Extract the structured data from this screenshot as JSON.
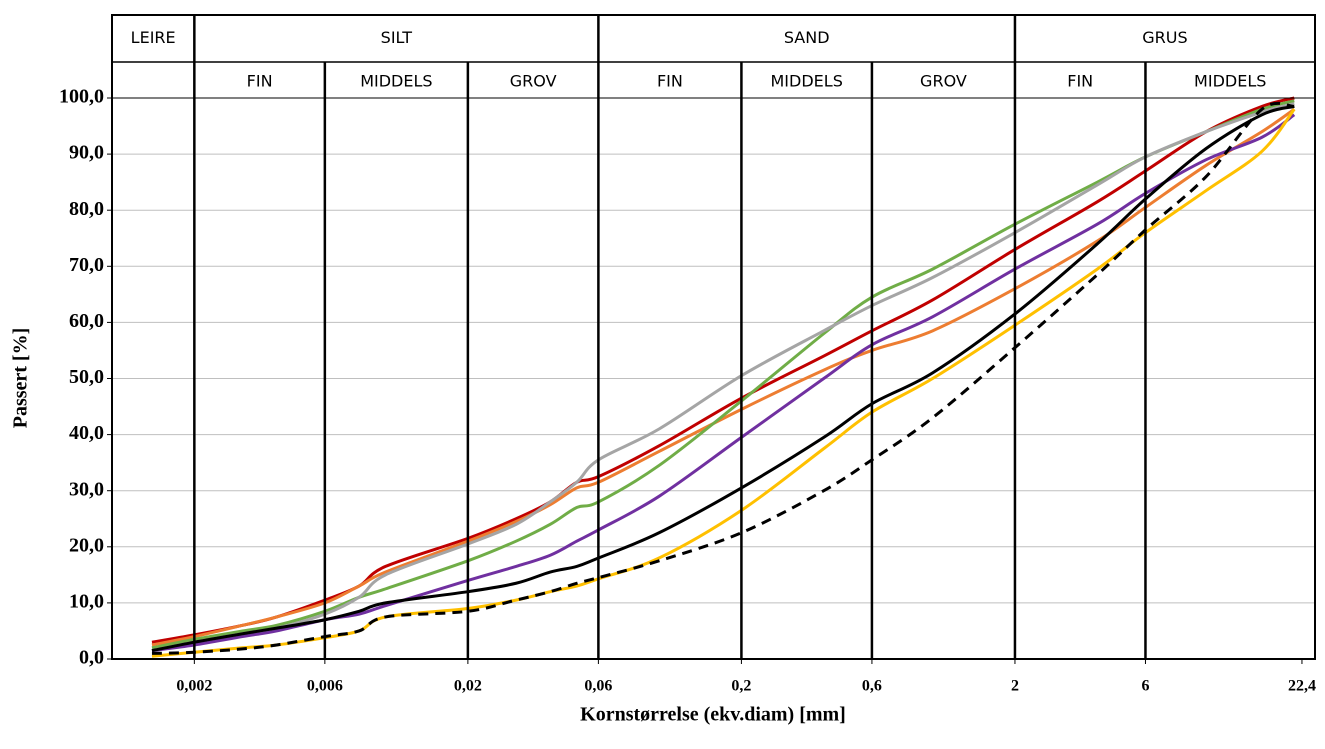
{
  "chart_data": {
    "type": "line",
    "xlabel": "Kornstørrelse (ekv.diam) [mm]",
    "ylabel": "Passert [%]",
    "xlog": true,
    "xlim": [
      0.001,
      25
    ],
    "ylim": [
      0,
      100
    ],
    "grid": true,
    "xticks": [
      {
        "value": 0.002,
        "label": "0,002"
      },
      {
        "value": 0.006,
        "label": "0,006"
      },
      {
        "value": 0.02,
        "label": "0,02"
      },
      {
        "value": 0.06,
        "label": "0,06"
      },
      {
        "value": 0.2,
        "label": "0,2"
      },
      {
        "value": 0.6,
        "label": "0,6"
      },
      2,
      6,
      {
        "value": 22.4,
        "label": "22,4"
      }
    ],
    "yticks": [
      {
        "value": 0,
        "label": "0,0"
      },
      {
        "value": 10,
        "label": "10,0"
      },
      {
        "value": 20,
        "label": "20,0"
      },
      {
        "value": 30,
        "label": "30,0"
      },
      {
        "value": 40,
        "label": "40,0"
      },
      {
        "value": 50,
        "label": "50,0"
      },
      {
        "value": 60,
        "label": "60,0"
      },
      {
        "value": 70,
        "label": "70,0"
      },
      {
        "value": 80,
        "label": "80,0"
      },
      {
        "value": 90,
        "label": "90,0"
      },
      {
        "value": 100,
        "label": "100,0"
      }
    ],
    "boundaries": [
      0.002,
      0.006,
      0.02,
      0.06,
      0.2,
      0.6,
      2,
      6
    ],
    "fractions": [
      "LEIRE",
      "SILT",
      "SAND",
      "GRUS"
    ],
    "subfractions": [
      "FIN",
      "MIDDELS",
      "GROV",
      "FIN",
      "MIDDELS",
      "GROV",
      "FIN",
      "MIDDELS"
    ],
    "x": [
      0.0014,
      0.002,
      0.003,
      0.004,
      0.006,
      0.008,
      0.01,
      0.02,
      0.03,
      0.04,
      0.05,
      0.06,
      0.1,
      0.2,
      0.4,
      0.6,
      1,
      2,
      4,
      6,
      10,
      16,
      21
    ],
    "series": [
      {
        "color": "#c00000",
        "values": [
          3,
          4.3,
          6,
          7.5,
          10.5,
          13,
          16.5,
          21.5,
          25,
          28,
          31.5,
          32.5,
          38,
          46.5,
          54,
          58.5,
          64,
          73,
          81.5,
          87,
          94,
          98.5,
          100
        ]
      },
      {
        "color": "#ed7d31",
        "values": [
          2.5,
          4,
          6,
          7.5,
          10,
          13,
          15.5,
          21,
          24.5,
          27.5,
          30.5,
          31.5,
          37,
          44.5,
          51.5,
          55,
          58.5,
          66,
          74.5,
          80.5,
          88,
          94,
          98
        ]
      },
      {
        "color": "#70ad47",
        "values": [
          2,
          3.5,
          5,
          6,
          8.5,
          11,
          12.5,
          17.5,
          21,
          24,
          27,
          28,
          34.5,
          46,
          58,
          64.5,
          69.5,
          77.5,
          85,
          89.5,
          94,
          98,
          99.5
        ]
      },
      {
        "color": "#a5a5a5",
        "values": [
          1.5,
          3,
          4.5,
          5.5,
          8,
          11,
          15,
          20.5,
          24,
          28,
          31.5,
          35.5,
          41,
          50.5,
          58.5,
          63,
          68,
          76,
          84.5,
          89.5,
          94,
          97.5,
          99
        ]
      },
      {
        "color": "#7030a0",
        "values": [
          1.5,
          2.5,
          4,
          5,
          7,
          8,
          9.5,
          14,
          16.5,
          18.5,
          21,
          23,
          29,
          39.5,
          50,
          56,
          61,
          69.5,
          77.5,
          83,
          89,
          93,
          97
        ]
      },
      {
        "color": "#000000",
        "values": [
          1.5,
          3,
          4.5,
          5.5,
          7,
          8.5,
          10,
          12,
          13.5,
          15.5,
          16.5,
          18,
          22.5,
          30.5,
          39.5,
          45.5,
          51,
          61.5,
          74,
          82,
          91,
          97,
          98.5
        ]
      },
      {
        "color": "#ffc000",
        "values": [
          0.5,
          1.2,
          2,
          2.5,
          3.8,
          5,
          7.5,
          9,
          10.5,
          12,
          13,
          14.3,
          18,
          26.5,
          37.5,
          44,
          50,
          59.5,
          69.5,
          76,
          83.5,
          90.5,
          98
        ]
      },
      {
        "color": "#000000",
        "dash": true,
        "values": [
          1,
          1.2,
          1.8,
          2.5,
          4,
          5,
          7.5,
          8.5,
          10.5,
          12,
          13.5,
          14.5,
          17.5,
          22.5,
          30,
          35.5,
          43,
          55.5,
          68.5,
          76.5,
          86,
          98,
          98.5
        ]
      }
    ]
  }
}
